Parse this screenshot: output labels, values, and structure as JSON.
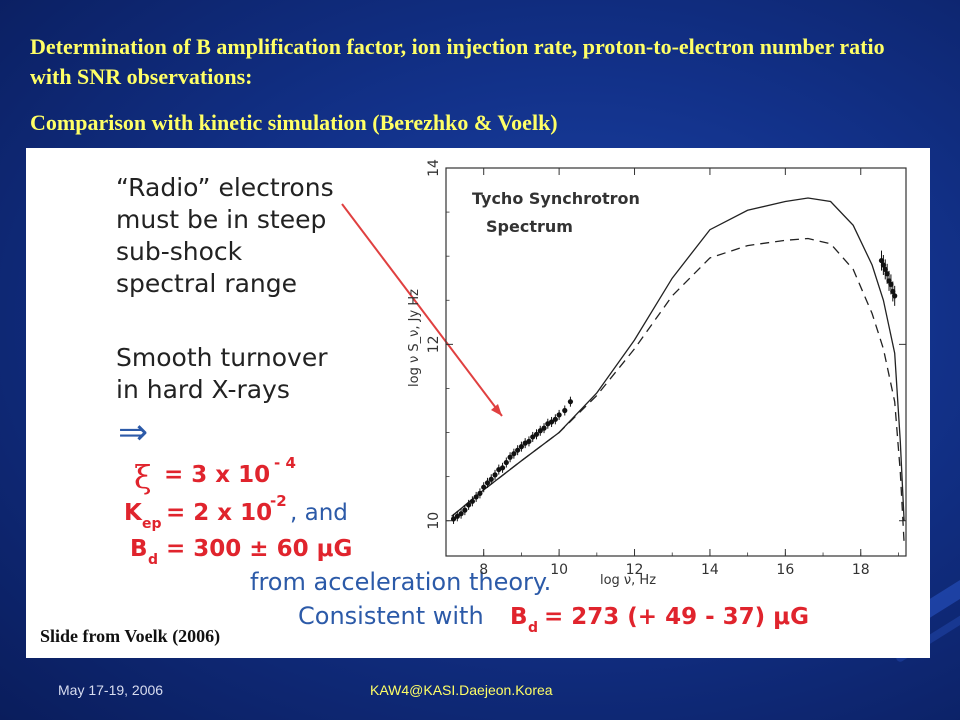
{
  "slide": {
    "title": "Determination of B amplification factor, ion injection rate, proton-to-electron number ratio with SNR observations:",
    "subtitle": "Comparison with kinetic simulation (Berezhko & Voelk)"
  },
  "figure": {
    "note_radio": [
      "“Radio” electrons",
      "must be in steep",
      "sub-shock",
      "spectral range"
    ],
    "note_turnover": [
      "Smooth turnover",
      "in hard X-rays"
    ],
    "implies_symbol": "⇒",
    "xi_symbol": "ξ",
    "xi_value": "= 3 x 10",
    "xi_exp": "- 4",
    "kep_label": "K",
    "kep_sub": "ep",
    "kep_value": "= 2 x 10",
    "kep_exp": "-2",
    "kep_suffix": ", and",
    "bd_label": "B",
    "bd_sub": "d",
    "bd_value": "= 300 ± 60 μG",
    "from_theory": "from acceleration theory.",
    "consistent_prefix": "Consistent with",
    "bd2_label": "B",
    "bd2_sub": "d",
    "bd2_value": "= 273 (+ 49 - 37) μG",
    "caption": "Slide from Voelk (2006)",
    "colors": {
      "red": "#e0242d",
      "blue": "#2c5aa8"
    }
  },
  "chart_data": {
    "type": "line",
    "title": "Tycho Synchrotron Spectrum",
    "xlabel": "log ν, Hz",
    "ylabel": "log ν S_ν, Jy Hz",
    "xlim": [
      7,
      19.2
    ],
    "ylim": [
      9.6,
      14
    ],
    "x_ticks": [
      8,
      10,
      12,
      14,
      16,
      18
    ],
    "y_ticks": [
      10,
      12,
      14
    ],
    "series": [
      {
        "style": "solid",
        "x": [
          7.15,
          8,
          9,
          10,
          11,
          12,
          13,
          14,
          15,
          16,
          16.6,
          17.2,
          17.8,
          18.3,
          18.6,
          18.9,
          19.05,
          19.15
        ],
        "y": [
          10.05,
          10.35,
          10.68,
          11.0,
          11.45,
          12.05,
          12.75,
          13.3,
          13.52,
          13.62,
          13.66,
          13.62,
          13.35,
          12.9,
          12.5,
          11.9,
          10.9,
          10.0
        ]
      },
      {
        "style": "dashed",
        "x": [
          7.15,
          8,
          9,
          10,
          11,
          12,
          13,
          14,
          15,
          16,
          16.6,
          17.2,
          17.8,
          18.3,
          18.6,
          18.9,
          19.05,
          19.15
        ],
        "y": [
          10.05,
          10.35,
          10.68,
          11.0,
          11.42,
          11.95,
          12.55,
          12.98,
          13.12,
          13.18,
          13.2,
          13.14,
          12.85,
          12.35,
          11.95,
          11.35,
          10.55,
          9.75
        ]
      }
    ],
    "radio_points": {
      "x": [
        7.2,
        7.3,
        7.4,
        7.5,
        7.6,
        7.7,
        7.8,
        7.9,
        8.0,
        8.1,
        8.2,
        8.3,
        8.4,
        8.5,
        8.6,
        8.7,
        8.8,
        8.9,
        9.0,
        9.1,
        9.2,
        9.3,
        9.4,
        9.5,
        9.6,
        9.7,
        9.8,
        9.9,
        10.0,
        10.15,
        10.3
      ],
      "y": [
        10.02,
        10.05,
        10.08,
        10.12,
        10.18,
        10.22,
        10.27,
        10.31,
        10.38,
        10.43,
        10.47,
        10.52,
        10.58,
        10.6,
        10.66,
        10.72,
        10.76,
        10.8,
        10.84,
        10.88,
        10.9,
        10.95,
        10.98,
        11.02,
        11.05,
        11.1,
        11.12,
        11.15,
        11.2,
        11.25,
        11.35
      ]
    },
    "xray_points": {
      "x": [
        18.55,
        18.6,
        18.65,
        18.7,
        18.75,
        18.8,
        18.85,
        18.9
      ],
      "y": [
        12.95,
        12.9,
        12.85,
        12.8,
        12.72,
        12.68,
        12.6,
        12.55
      ]
    }
  },
  "footer": {
    "date": "May 17-19, 2006",
    "event": "KAW4@KASI.Daejeon.Korea"
  }
}
